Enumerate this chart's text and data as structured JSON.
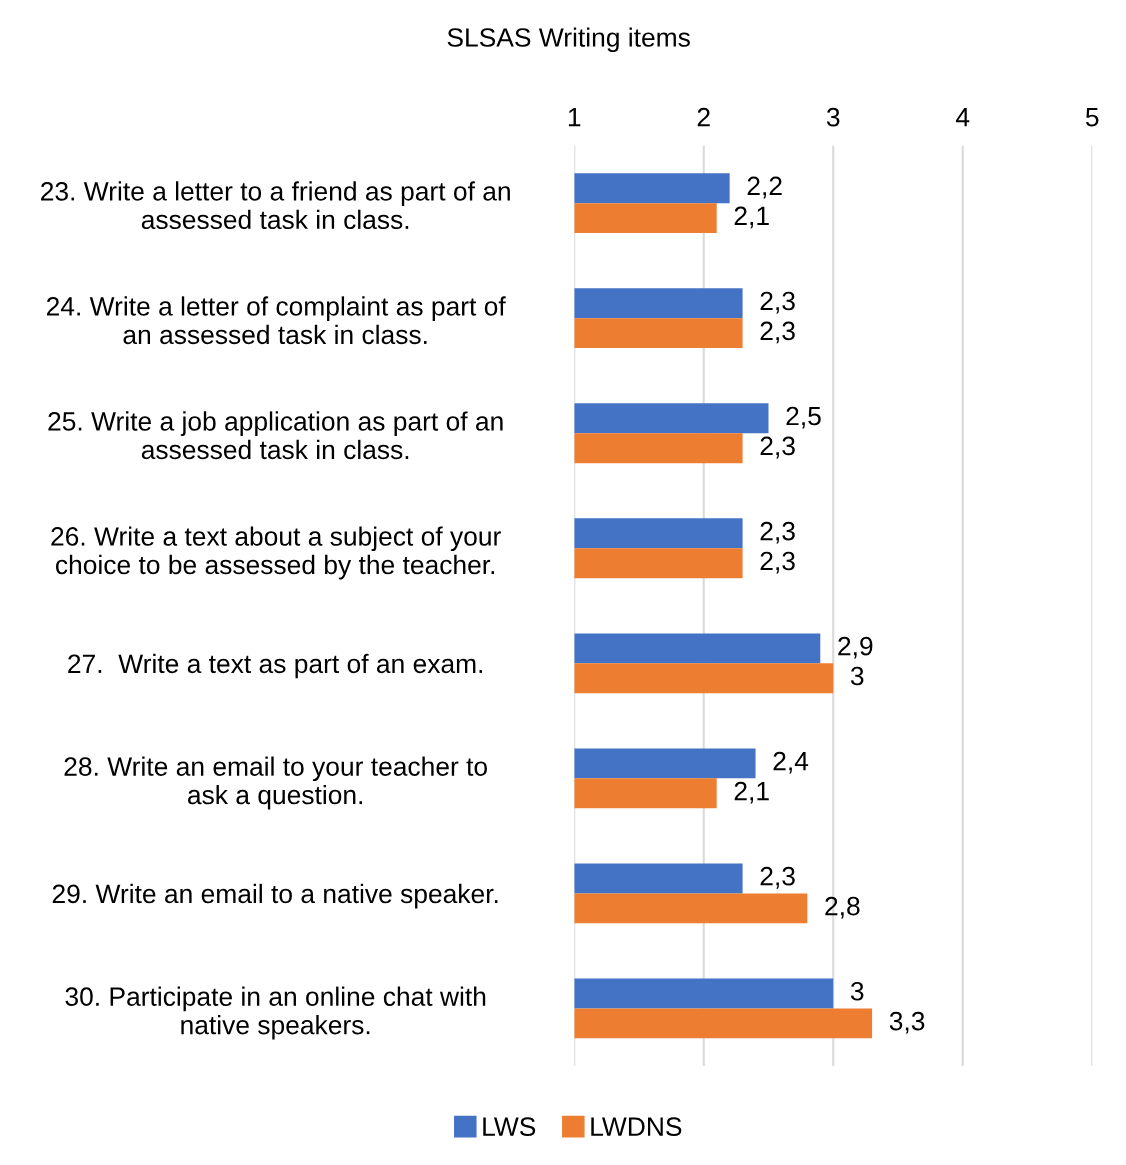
{
  "chart_data": {
    "type": "bar",
    "orientation": "horizontal",
    "title": "SLSAS Writing items",
    "categories": [
      "23. Write a letter to a friend as part of an\nassessed task in class.",
      "24. Write a letter of complaint as part of\nan assessed task in class.",
      "25. Write a job application as part of an\nassessed task in class.",
      "26. Write a text about a subject of your\nchoice to be assessed by the teacher.",
      "27.  Write a text as part of an exam.",
      "28. Write an email to your teacher to\nask a question.",
      "29. Write an email to a native speaker.",
      "30. Participate in an online chat with\nnative speakers."
    ],
    "series": [
      {
        "name": "LWS",
        "color": "#4472c4",
        "values": [
          2.2,
          2.3,
          2.5,
          2.3,
          2.9,
          2.4,
          2.3,
          3
        ],
        "value_labels": [
          "2,2",
          "2,3",
          "2,5",
          "2,3",
          "2,9",
          "2,4",
          "2,3",
          "3"
        ]
      },
      {
        "name": "LWDNS",
        "color": "#ed7d31",
        "values": [
          2.1,
          2.3,
          2.3,
          2.3,
          3,
          2.1,
          2.8,
          3.3
        ],
        "value_labels": [
          "2,1",
          "2,3",
          "2,3",
          "2,3",
          "3",
          "2,1",
          "2,8",
          "3,3"
        ]
      }
    ],
    "xlim": [
      1,
      5
    ],
    "xticks": [
      1,
      2,
      3,
      4,
      5
    ],
    "grid": "x",
    "legend": "bottom"
  }
}
